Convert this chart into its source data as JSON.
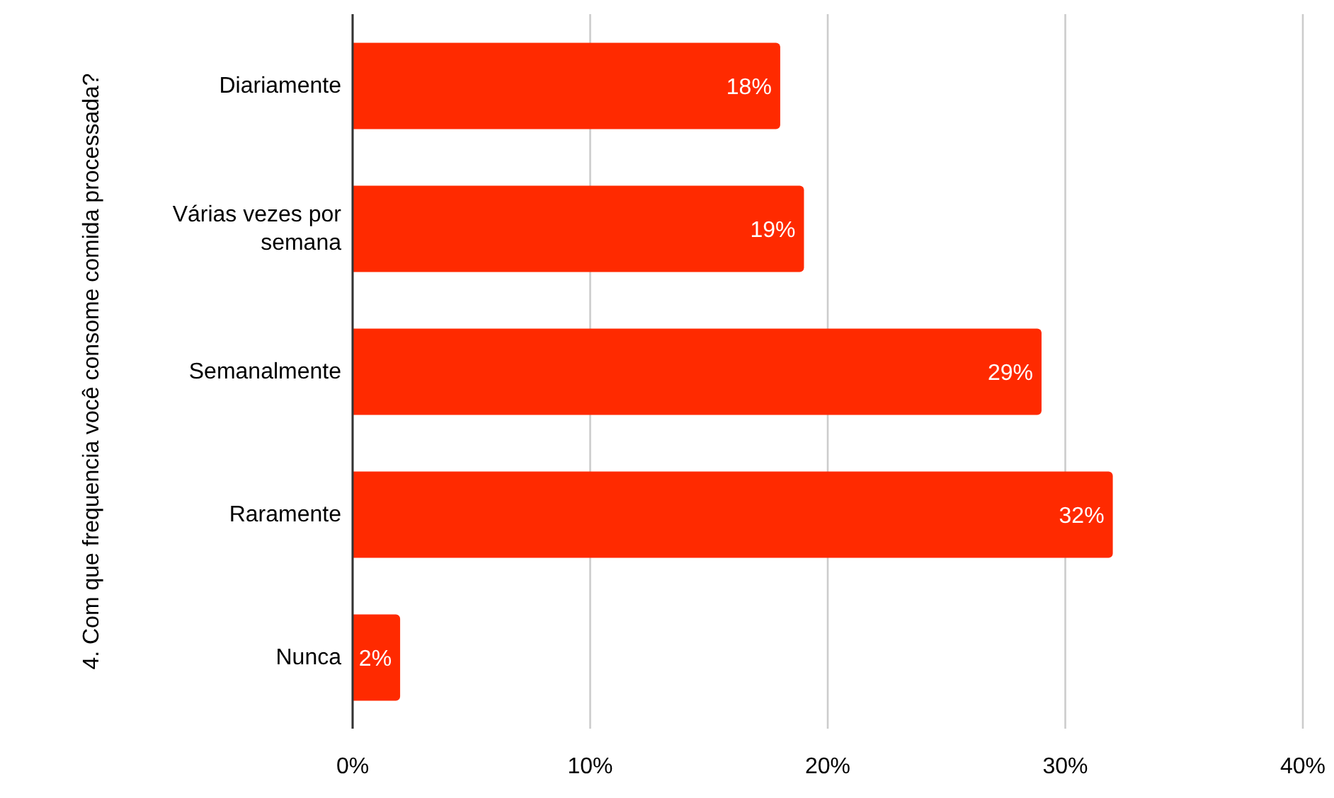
{
  "chart_data": {
    "type": "bar",
    "orientation": "horizontal",
    "ylabel": "4. Com que frequencia você consome comida processada?",
    "categories": [
      "Diariamente",
      "Várias vezes por semana",
      "Semanalmente",
      "Raramente",
      "Nunca"
    ],
    "values": [
      18,
      19,
      29,
      32,
      2
    ],
    "value_labels": [
      "18%",
      "19%",
      "29%",
      "32%",
      "2%"
    ],
    "color": "#ff2a00",
    "xlim": [
      0,
      40
    ],
    "xticks": [
      {
        "value": 0,
        "label": "0%"
      },
      {
        "value": 10,
        "label": "10%"
      },
      {
        "value": 20,
        "label": "20%"
      },
      {
        "value": 30,
        "label": "30%"
      },
      {
        "value": 40,
        "label": "40%"
      }
    ],
    "grid": "x"
  }
}
